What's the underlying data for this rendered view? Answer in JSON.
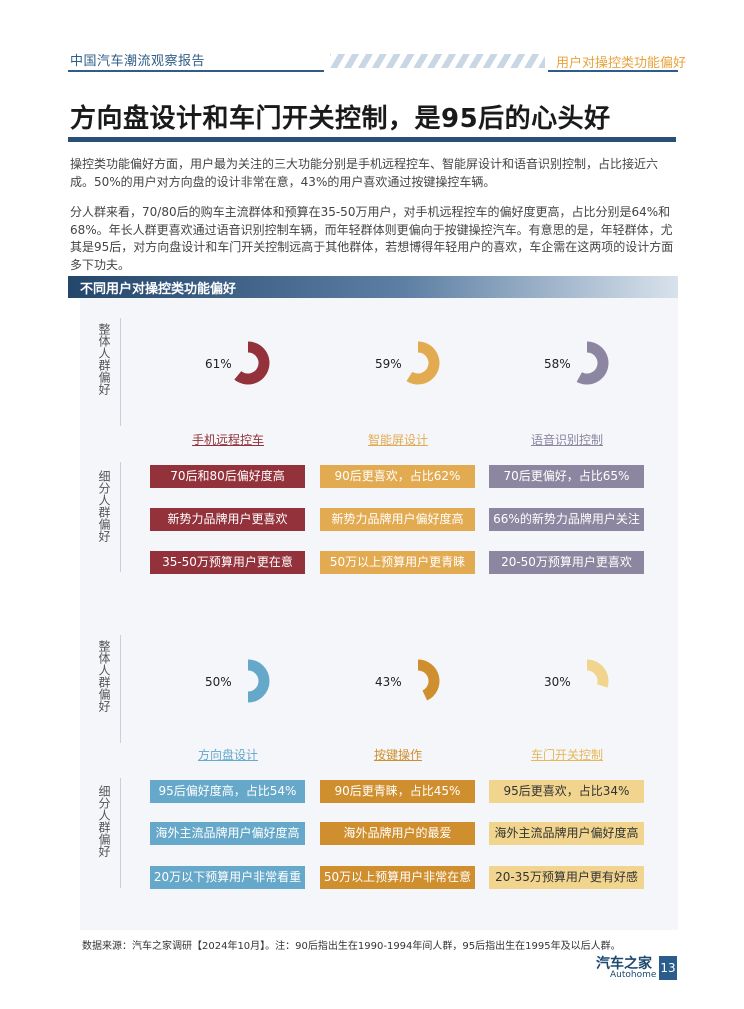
{
  "header": {
    "report_title": "中国汽车潮流观察报告",
    "section": "用户对操控类功能偏好"
  },
  "title": "方向盘设计和车门开关控制，是95后的心头好",
  "paragraphs": [
    "操控类功能偏好方面，用户最为关注的三大功能分别是手机远程控车、智能屏设计和语音识别控制，占比接近六成。50%的用户对方向盘的设计非常在意，43%的用户喜欢通过按键操控车辆。",
    "分人群来看，70/80后的购车主流群体和预算在35-50万用户，对手机远程控车的偏好度更高，占比分别是64%和68%。年长人群更喜欢通过语音识别控制车辆，而年轻群体则更偏向于按键操控汽车。有意思的是，年轻群体，尤其是95后，对方向盘设计和车门开关控制远高于其他群体，若想博得年轻用户的喜欢，车企需在这两项的设计方面多下功夫。"
  ],
  "section_title": "不同用户对操控类功能偏好",
  "labels": {
    "overall": "整体人群偏好",
    "segment": "细分人群偏好"
  },
  "chart_data": [
    {
      "type": "gauge",
      "features": [
        {
          "name": "手机远程控车",
          "value": 61,
          "label": "61%",
          "color": "#93323b",
          "tags": [
            "70后和80后偏好度高",
            "新势力品牌用户更喜欢",
            "35-50万预算用户更在意"
          ]
        },
        {
          "name": "智能屏设计",
          "value": 59,
          "label": "59%",
          "color": "#e3ab51",
          "tags": [
            "90后更喜欢，占比62%",
            "新势力品牌用户偏好度高",
            "50万以上预算用户更青睐"
          ]
        },
        {
          "name": "语音识别控制",
          "value": 58,
          "label": "58%",
          "color": "#8d86a0",
          "tags": [
            "70后更偏好，占比65%",
            "66%的新势力品牌用户关注",
            "20-50万预算用户更喜欢"
          ]
        }
      ]
    },
    {
      "type": "gauge",
      "features": [
        {
          "name": "方向盘设计",
          "value": 50,
          "label": "50%",
          "color": "#66a8c9",
          "tags": [
            "95后偏好度高，占比54%",
            "海外主流品牌用户偏好度高",
            "20万以下预算用户非常看重"
          ]
        },
        {
          "name": "按键操作",
          "value": 43,
          "label": "43%",
          "color": "#d08f2e",
          "tags": [
            "90后更青睐，占比45%",
            "海外品牌用户的最爱",
            "50万以上预算用户非常在意"
          ]
        },
        {
          "name": "车门开关控制",
          "value": 30,
          "label": "30%",
          "color": "#f1d58f",
          "tags": [
            "95后更喜欢，占比34%",
            "海外主流品牌用户偏好度高",
            "20-35万预算用户更有好感"
          ]
        }
      ]
    }
  ],
  "source": "数据来源：汽车之家调研【2024年10月】。注：90后指出生在1990-1994年间人群，95后指出生在1995年及以后人群。",
  "logo": {
    "cn": "汽车之家",
    "en": "Autohome"
  },
  "page_number": "13"
}
